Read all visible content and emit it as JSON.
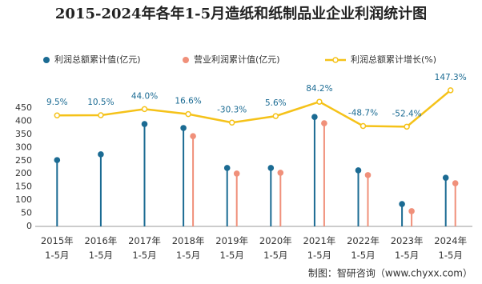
{
  "chart_data": {
    "type": "lollipop-line",
    "title": "2015-2024年各年1-5月造纸和纸制品业企业利润统计图",
    "categories": [
      "2015年\n1-5月",
      "2016年\n1-5月",
      "2017年\n1-5月",
      "2018年\n1-5月",
      "2019年\n1-5月",
      "2020年\n1-5月",
      "2021年\n1-5月",
      "2022年\n1-5月",
      "2023年\n1-5月",
      "2024年\n1-5月"
    ],
    "series": [
      {
        "name": "利润总额累计值(亿元)",
        "color": "#1b6b93",
        "values": [
          252,
          274,
          389,
          374,
          222,
          222,
          416,
          213,
          85,
          185
        ]
      },
      {
        "name": "营业利润累计值(亿元)",
        "color": "#f0907a",
        "values": [
          null,
          null,
          null,
          343,
          201,
          204,
          392,
          195,
          58,
          164
        ]
      },
      {
        "name": "利润总额累计增长(%)",
        "color": "#f5c219",
        "axis": "y2",
        "values": [
          9.5,
          10.5,
          44.0,
          16.6,
          -30.3,
          5.6,
          84.2,
          -48.7,
          -52.4,
          147.3
        ],
        "value_labels": [
          "9.5%",
          "10.5%",
          "44.0%",
          "16.6%",
          "-30.3%",
          "5.6%",
          "84.2%",
          "-48.7%",
          "-52.4%",
          "147.3%"
        ]
      }
    ],
    "ylim": [
      0,
      450
    ],
    "yticks": [
      0,
      50,
      100,
      150,
      200,
      250,
      300,
      350,
      400,
      450
    ],
    "y2lim": [
      -600,
      50
    ],
    "grid": false,
    "source": "制图：智研咨询（www.chyxx.com）"
  }
}
